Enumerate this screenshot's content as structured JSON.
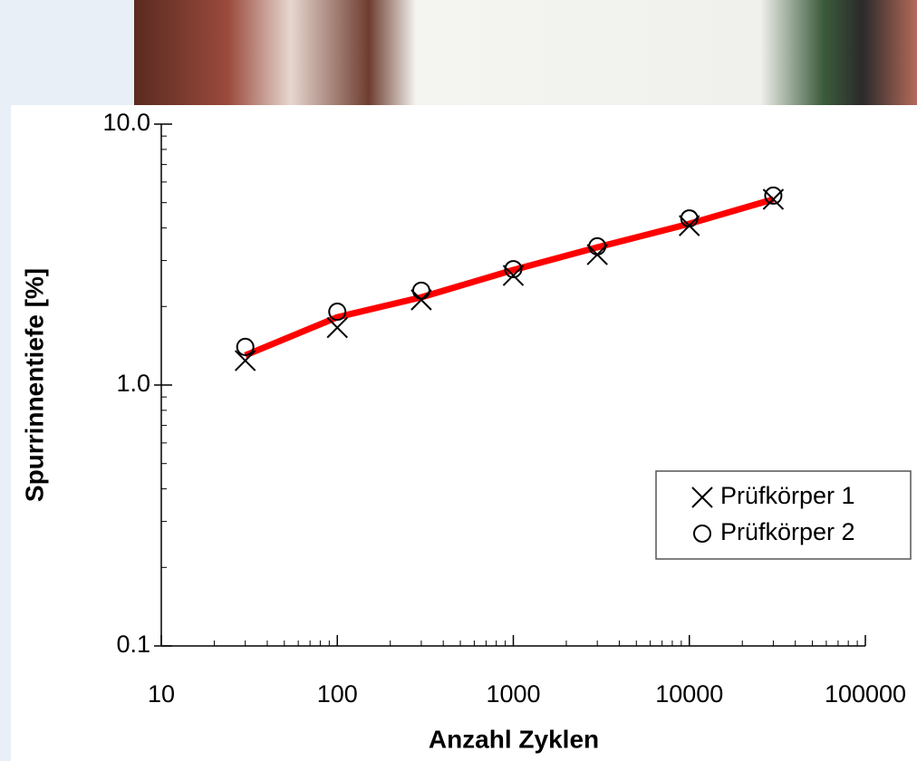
{
  "chart_data": {
    "type": "scatter",
    "x_label": "Anzahl Zyklen",
    "y_label": "Spurrinnentiefe [%]",
    "x": [
      30,
      100,
      300,
      1000,
      3000,
      10000,
      30000
    ],
    "series": [
      {
        "name": "Prüfkörper 1",
        "color": "#000000",
        "marker": "x",
        "values": [
          1.24,
          1.66,
          2.12,
          2.63,
          3.16,
          4.08,
          5.15
        ]
      },
      {
        "name": "Prüfkörper 2",
        "color": "#000000",
        "marker": "circle",
        "values": [
          1.4,
          1.91,
          2.3,
          2.78,
          3.4,
          4.35,
          5.32
        ]
      },
      {
        "color": "#ff0000",
        "marker": "line",
        "values": [
          1.3,
          1.82,
          2.17,
          2.76,
          3.37,
          4.15,
          5.15
        ]
      }
    ],
    "xscale": "log",
    "yscale": "log",
    "xlim": [
      10,
      100000
    ],
    "xticks": [
      10,
      100,
      1000,
      10000,
      100000
    ],
    "ylim": [
      0.1,
      10
    ],
    "yticks": [
      0.1,
      {
        "value": 1,
        "label": "1.0"
      },
      {
        "value": 10,
        "label": "10.0"
      }
    ],
    "legend": "right"
  }
}
